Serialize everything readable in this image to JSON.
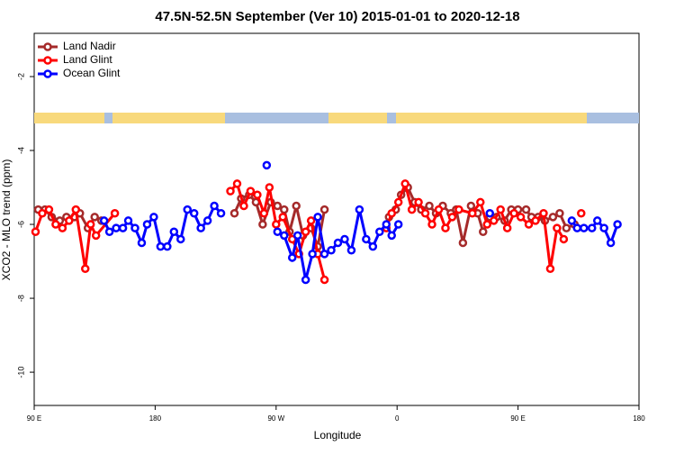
{
  "chart_data": {
    "type": "line",
    "title": "47.5N-52.5N September (Ver 10)   2015-01-01 to 2020-12-18",
    "xlabel": "Longitude",
    "ylabel": "XCO2 - MLO trend (ppm)",
    "xlim": [
      90,
      540
    ],
    "ylim": [
      -10.9,
      -0.83
    ],
    "xticks": [
      {
        "value": 90,
        "label": "90 E"
      },
      180,
      {
        "value": 270,
        "label": "90 W"
      },
      {
        "value": 360,
        "label": "0"
      },
      {
        "value": 450,
        "label": "90 E"
      },
      {
        "value": 540,
        "label": "180"
      }
    ],
    "yticks": [
      -2,
      -4,
      -6,
      -8,
      -10
    ],
    "legend": "upper left",
    "series": [
      {
        "name": "Land Nadir",
        "color": "#a52a2a",
        "x": [
          93,
          98,
          103,
          109,
          114,
          120,
          124,
          130,
          135,
          140,
          190,
          239,
          244,
          250,
          255,
          260,
          266,
          271,
          276,
          280,
          285,
          290,
          296,
          301,
          306,
          330,
          354,
          359,
          363,
          368,
          373,
          378,
          384,
          389,
          394,
          400,
          404,
          409,
          415,
          420,
          424,
          429,
          434,
          440,
          445,
          450,
          456,
          460,
          465,
          470,
          476,
          481,
          486,
          492
        ],
        "values": [
          -5.6,
          -5.6,
          -5.8,
          -5.9,
          -5.8,
          -5.8,
          -5.7,
          -6.1,
          -5.8,
          -5.9,
          null,
          -5.7,
          -5.3,
          -5.2,
          -5.4,
          -6.0,
          -5.4,
          -5.5,
          -5.6,
          -6.2,
          -5.5,
          -6.3,
          -6.1,
          -6.6,
          -5.6,
          null,
          -5.8,
          -5.6,
          -5.2,
          -5.0,
          -5.4,
          -5.6,
          -5.5,
          -5.7,
          -5.5,
          -5.7,
          -5.6,
          -6.5,
          -5.5,
          -5.7,
          -6.2,
          -5.8,
          -5.8,
          -5.9,
          -5.6,
          -5.6,
          -5.6,
          -5.8,
          -5.8,
          -5.9,
          -5.8,
          -5.7,
          -6.1,
          -6.0
        ]
      },
      {
        "name": "Land Glint",
        "color": "#ff0000",
        "x": [
          91,
          96,
          101,
          106,
          111,
          116,
          121,
          128,
          132,
          136,
          150,
          200,
          236,
          241,
          246,
          251,
          256,
          261,
          265,
          270,
          275,
          282,
          287,
          292,
          296,
          301,
          306,
          330,
          352,
          356,
          361,
          366,
          371,
          376,
          381,
          386,
          391,
          396,
          401,
          406,
          416,
          422,
          427,
          432,
          437,
          442,
          447,
          452,
          458,
          463,
          469,
          474,
          479,
          484,
          490,
          497
        ],
        "values": [
          -6.2,
          -5.7,
          -5.6,
          -6.0,
          -6.1,
          -5.9,
          -5.6,
          -7.2,
          -6.0,
          -6.3,
          -5.7,
          null,
          -5.1,
          -4.9,
          -5.5,
          -5.1,
          -5.2,
          -5.7,
          -5.0,
          -6.0,
          -5.8,
          -6.4,
          -6.8,
          -6.2,
          -5.9,
          -6.8,
          -7.5,
          null,
          -6.1,
          -5.7,
          -5.4,
          -4.9,
          -5.6,
          -5.4,
          -5.7,
          -6.0,
          -5.6,
          -6.1,
          -5.8,
          -5.6,
          -5.7,
          -5.4,
          -6.0,
          -5.9,
          -5.6,
          -6.1,
          -5.7,
          -5.8,
          -6.0,
          -5.9,
          -5.7,
          -7.2,
          -6.1,
          -6.4,
          null,
          -5.7
        ]
      },
      {
        "name": "Ocean Glint",
        "color": "#0000ff",
        "x": [
          142,
          146,
          151,
          156,
          160,
          165,
          170,
          174,
          179,
          184,
          189,
          194,
          199,
          204,
          209,
          214,
          219,
          224,
          229,
          246,
          263,
          267,
          271,
          276,
          282,
          286,
          292,
          297,
          301,
          306,
          311,
          316,
          321,
          326,
          332,
          337,
          342,
          347,
          352,
          356,
          361,
          395,
          429,
          460,
          490,
          494,
          499,
          505,
          509,
          514,
          519,
          524
        ],
        "values": [
          -5.9,
          -6.2,
          -6.1,
          -6.1,
          -5.9,
          -6.1,
          -6.5,
          -6.0,
          -5.8,
          -6.6,
          -6.6,
          -6.2,
          -6.4,
          -5.6,
          -5.7,
          -6.1,
          -5.9,
          -5.5,
          -5.7,
          null,
          -4.4,
          null,
          -6.2,
          -6.3,
          -6.9,
          -6.3,
          -7.5,
          -6.8,
          -5.8,
          -6.8,
          -6.7,
          -6.5,
          -6.4,
          -6.7,
          -5.6,
          -6.4,
          -6.6,
          -6.2,
          -6.0,
          -6.3,
          -6.0,
          null,
          -5.7,
          null,
          -5.9,
          -6.1,
          -6.1,
          -6.1,
          -5.9,
          -6.1,
          -6.5,
          -6.0
        ]
      }
    ]
  }
}
